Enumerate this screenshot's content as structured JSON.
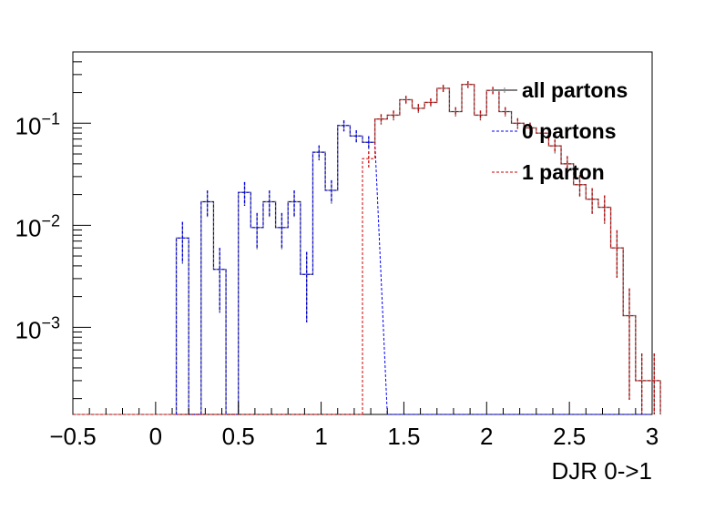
{
  "chart_data": {
    "type": "histogram-step",
    "xlabel": "DJR 0->1",
    "ylabel": "",
    "title": "",
    "xlim": [
      -0.5,
      3.0
    ],
    "ylim": [
      0.00014,
      0.5
    ],
    "yscale": "log",
    "bin_width": 0.075,
    "x_ticks": [
      "-0.5",
      "0",
      "0.5",
      "1",
      "1.5",
      "2",
      "2.5",
      "3"
    ],
    "y_ticks": [
      {
        "value": 0.001,
        "base": "10",
        "exp": "-3"
      },
      {
        "value": 0.01,
        "base": "10",
        "exp": "-2"
      },
      {
        "value": 0.1,
        "base": "10",
        "exp": "-1"
      }
    ],
    "legend": {
      "position": "top-right",
      "entries": [
        "all partons",
        "0 partons",
        "1 parton"
      ]
    },
    "series": [
      {
        "name": "all partons",
        "color": "#808080",
        "style": "solid",
        "bin_edges": [
          0.125,
          0.2,
          0.275,
          0.35,
          0.425,
          0.5,
          0.575,
          0.65,
          0.725,
          0.8,
          0.875,
          0.95,
          1.025,
          1.1,
          1.175,
          1.25,
          1.325,
          1.4,
          1.475,
          1.55,
          1.625,
          1.7,
          1.775,
          1.85,
          1.925,
          2.0,
          2.075,
          2.15,
          2.225,
          2.3,
          2.375,
          2.45,
          2.525,
          2.6,
          2.675,
          2.75,
          2.825,
          2.9,
          2.975
        ],
        "values": [
          0.0075,
          0.0001,
          0.017,
          0.0037,
          0.0001,
          0.021,
          0.0095,
          0.017,
          0.0095,
          0.017,
          0.0033,
          0.052,
          0.022,
          0.095,
          0.075,
          0.065,
          0.11,
          0.12,
          0.17,
          0.14,
          0.16,
          0.22,
          0.13,
          0.24,
          0.12,
          0.21,
          0.13,
          0.1,
          0.09,
          0.08,
          0.06,
          0.04,
          0.025,
          0.018,
          0.015,
          0.006,
          0.0013,
          0.0003,
          0.0003
        ]
      },
      {
        "name": "0 partons",
        "color": "#0000ff",
        "style": "dashed",
        "bin_edges": [
          0.125,
          0.2,
          0.275,
          0.35,
          0.425,
          0.5,
          0.575,
          0.65,
          0.725,
          0.8,
          0.875,
          0.95,
          1.025,
          1.1,
          1.175,
          1.25,
          1.325
        ],
        "values": [
          0.0075,
          0.0001,
          0.017,
          0.0037,
          0.0001,
          0.021,
          0.0095,
          0.017,
          0.0095,
          0.017,
          0.0033,
          0.052,
          0.022,
          0.095,
          0.075,
          0.065
        ]
      },
      {
        "name": "1 parton",
        "color": "#cc0000",
        "style": "dashed",
        "bin_edges": [
          1.25,
          1.325,
          1.4,
          1.475,
          1.55,
          1.625,
          1.7,
          1.775,
          1.85,
          1.925,
          2.0,
          2.075,
          2.15,
          2.225,
          2.3,
          2.375,
          2.45,
          2.525,
          2.6,
          2.675,
          2.75,
          2.825,
          2.9,
          2.975
        ],
        "values": [
          0.045,
          0.11,
          0.12,
          0.17,
          0.14,
          0.16,
          0.22,
          0.13,
          0.24,
          0.12,
          0.21,
          0.13,
          0.1,
          0.09,
          0.08,
          0.06,
          0.04,
          0.025,
          0.018,
          0.015,
          0.006,
          0.0013,
          0.0003,
          0.0003
        ]
      }
    ]
  }
}
